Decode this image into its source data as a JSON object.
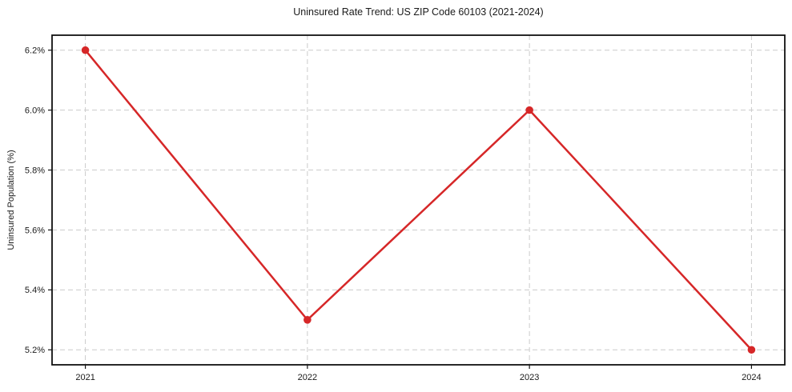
{
  "chart_data": {
    "type": "line",
    "title": "Uninsured Rate Trend: US ZIP Code 60103 (2021-2024)",
    "xlabel": "",
    "ylabel": "Uninsured Population (%)",
    "x": [
      2021,
      2022,
      2023,
      2024
    ],
    "series": [
      {
        "name": "Uninsured rate",
        "values": [
          6.2,
          5.3,
          6.0,
          5.2
        ],
        "color": "#d62728",
        "marker": "circle"
      }
    ],
    "xlim": [
      2020.85,
      2024.15
    ],
    "ylim": [
      5.15,
      6.25
    ],
    "xtick_values": [
      2021,
      2022,
      2023,
      2024
    ],
    "xtick_labels": [
      "2021",
      "2022",
      "2023",
      "2024"
    ],
    "ytick_values": [
      5.2,
      5.4,
      5.6,
      5.8,
      6.0,
      6.2
    ],
    "ytick_labels": [
      "5.2%",
      "5.4%",
      "5.6%",
      "5.8%",
      "6.0%",
      "6.2%"
    ],
    "grid": true,
    "grid_style": "dashed",
    "grid_color": "#cccccc",
    "spine_color": "#111111",
    "line_color": "#d62728",
    "background_color": "#ffffff",
    "legend": false,
    "legend_position": "none"
  }
}
